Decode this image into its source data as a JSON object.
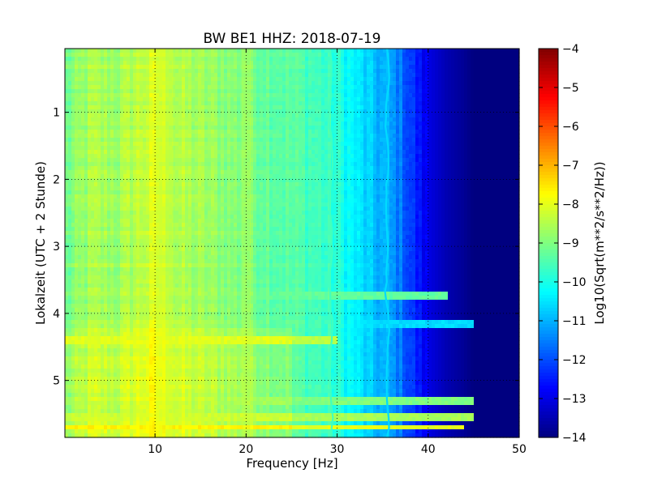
{
  "chart_data": {
    "type": "heatmap",
    "title": "BW BE1 HHZ: 2018-07-19",
    "xlabel": "Frequency [Hz]",
    "ylabel": "Lokalzeit (UTC + 2 Stunde)",
    "xlim": [
      0.1,
      50
    ],
    "ylim": [
      5.85,
      0.05
    ],
    "x_ticks": [
      10,
      20,
      30,
      40,
      50
    ],
    "x_tick_labels": [
      "10",
      "20",
      "30",
      "40",
      "50"
    ],
    "y_ticks": [
      1,
      2,
      3,
      4,
      5
    ],
    "y_tick_labels": [
      "1",
      "2",
      "3",
      "4",
      "5"
    ],
    "grid": true,
    "colormap": "jet",
    "colorbar": {
      "label": "Log10(Sqrt(m**2/s**2/Hz))",
      "range": [
        -14,
        -4
      ],
      "ticks": [
        -4,
        -5,
        -6,
        -7,
        -8,
        -9,
        -10,
        -11,
        -12,
        -13,
        -14
      ],
      "tick_labels": [
        "−4",
        "−5",
        "−6",
        "−7",
        "−8",
        "−9",
        "−10",
        "−11",
        "−12",
        "−13",
        "−14"
      ]
    },
    "spectral_profile": {
      "frequency_hz": [
        0.1,
        3,
        6,
        8,
        10,
        12,
        15,
        20,
        25,
        28,
        30,
        32,
        34,
        35.5,
        37,
        38,
        39,
        40,
        42,
        44,
        45,
        46,
        50
      ],
      "log10_amplitude": [
        -9.2,
        -8.6,
        -8.7,
        -8.4,
        -8.2,
        -8.5,
        -8.7,
        -9.0,
        -9.4,
        -9.6,
        -9.9,
        -10.4,
        -10.9,
        -11.1,
        -11.6,
        -12.1,
        -12.6,
        -13.0,
        -13.5,
        -13.8,
        -14.0,
        -14.0,
        -14.0
      ]
    },
    "features": [
      {
        "kind": "line",
        "frequency_hz": 35.5,
        "log10_amplitude": -10.6,
        "label": ""
      },
      {
        "kind": "line",
        "frequency_hz": 29.3,
        "log10_amplitude": -9.6,
        "label": ""
      },
      {
        "kind": "band",
        "frequency_hz": [
          10,
          12
        ],
        "log10_amplitude": -8.0,
        "label": ""
      },
      {
        "kind": "band",
        "frequency_hz": [
          19.5,
          20.5
        ],
        "log10_amplitude": -8.2,
        "label": ""
      }
    ],
    "events": [
      {
        "time": 3.75,
        "max_frequency_hz": 42,
        "log10_amplitude": -9.3
      },
      {
        "time": 4.15,
        "max_frequency_hz": 45,
        "log10_amplitude": -10.6
      },
      {
        "time": 4.4,
        "max_frequency_hz": 30,
        "log10_amplitude": -8.4
      },
      {
        "time": 5.3,
        "max_frequency_hz": 45,
        "log10_amplitude": -9.0
      },
      {
        "time": 5.55,
        "max_frequency_hz": 45,
        "log10_amplitude": -8.6
      },
      {
        "time": 5.7,
        "max_frequency_hz": 44,
        "log10_amplitude": -8.0
      }
    ]
  }
}
